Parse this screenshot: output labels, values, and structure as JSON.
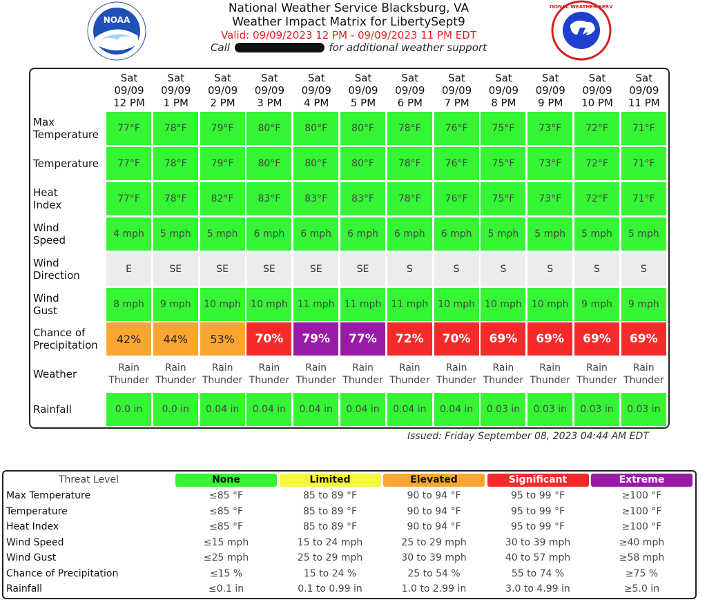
{
  "header": {
    "office": "National Weather Service Blacksburg, VA",
    "matrix_title": "Weather Impact Matrix for LibertySept9",
    "valid": "Valid: 09/09/2023 12 PM - 09/09/2023 11 PM EDT",
    "call_prefix": "Call",
    "call_suffix": "for additional weather support"
  },
  "times": [
    {
      "day": "Sat",
      "date": "09/09",
      "hour": "12 PM"
    },
    {
      "day": "Sat",
      "date": "09/09",
      "hour": "1 PM"
    },
    {
      "day": "Sat",
      "date": "09/09",
      "hour": "2 PM"
    },
    {
      "day": "Sat",
      "date": "09/09",
      "hour": "3 PM"
    },
    {
      "day": "Sat",
      "date": "09/09",
      "hour": "4 PM"
    },
    {
      "day": "Sat",
      "date": "09/09",
      "hour": "5 PM"
    },
    {
      "day": "Sat",
      "date": "09/09",
      "hour": "6 PM"
    },
    {
      "day": "Sat",
      "date": "09/09",
      "hour": "7 PM"
    },
    {
      "day": "Sat",
      "date": "09/09",
      "hour": "8 PM"
    },
    {
      "day": "Sat",
      "date": "09/09",
      "hour": "9 PM"
    },
    {
      "day": "Sat",
      "date": "09/09",
      "hour": "10 PM"
    },
    {
      "day": "Sat",
      "date": "09/09",
      "hour": "11 PM"
    }
  ],
  "rows": [
    {
      "label": [
        "Max",
        "Temperature"
      ],
      "values": [
        "77°F",
        "78°F",
        "79°F",
        "80°F",
        "80°F",
        "80°F",
        "78°F",
        "76°F",
        "75°F",
        "73°F",
        "72°F",
        "71°F"
      ],
      "levels": [
        "none",
        "none",
        "none",
        "none",
        "none",
        "none",
        "none",
        "none",
        "none",
        "none",
        "none",
        "none"
      ]
    },
    {
      "label": [
        "Temperature"
      ],
      "values": [
        "77°F",
        "78°F",
        "79°F",
        "80°F",
        "80°F",
        "80°F",
        "78°F",
        "76°F",
        "75°F",
        "73°F",
        "72°F",
        "71°F"
      ],
      "levels": [
        "none",
        "none",
        "none",
        "none",
        "none",
        "none",
        "none",
        "none",
        "none",
        "none",
        "none",
        "none"
      ]
    },
    {
      "label": [
        "Heat",
        "Index"
      ],
      "values": [
        "77°F",
        "78°F",
        "82°F",
        "83°F",
        "83°F",
        "83°F",
        "78°F",
        "76°F",
        "75°F",
        "73°F",
        "72°F",
        "71°F"
      ],
      "levels": [
        "none",
        "none",
        "none",
        "none",
        "none",
        "none",
        "none",
        "none",
        "none",
        "none",
        "none",
        "none"
      ]
    },
    {
      "label": [
        "Wind",
        "Speed"
      ],
      "values": [
        "4 mph",
        "5 mph",
        "5 mph",
        "6 mph",
        "6 mph",
        "6 mph",
        "6 mph",
        "6 mph",
        "5 mph",
        "5 mph",
        "5 mph",
        "5 mph"
      ],
      "levels": [
        "none",
        "none",
        "none",
        "none",
        "none",
        "none",
        "none",
        "none",
        "none",
        "none",
        "none",
        "none"
      ]
    },
    {
      "label": [
        "Wind",
        "Direction"
      ],
      "values": [
        "E",
        "SE",
        "SE",
        "SE",
        "SE",
        "SE",
        "S",
        "S",
        "S",
        "S",
        "S",
        "S"
      ],
      "levels": [
        "na",
        "na",
        "na",
        "na",
        "na",
        "na",
        "na",
        "na",
        "na",
        "na",
        "na",
        "na"
      ]
    },
    {
      "label": [
        "Wind",
        "Gust"
      ],
      "values": [
        "8 mph",
        "9 mph",
        "10 mph",
        "10 mph",
        "11 mph",
        "11 mph",
        "11 mph",
        "10 mph",
        "10 mph",
        "10 mph",
        "9 mph",
        "9 mph"
      ],
      "levels": [
        "none",
        "none",
        "none",
        "none",
        "none",
        "none",
        "none",
        "none",
        "none",
        "none",
        "none",
        "none"
      ]
    },
    {
      "label": [
        "Chance of",
        "Precipitation"
      ],
      "values": [
        "42%",
        "44%",
        "53%",
        "70%",
        "79%",
        "77%",
        "72%",
        "70%",
        "69%",
        "69%",
        "69%",
        "69%"
      ],
      "levels": [
        "elevated",
        "elevated",
        "elevated",
        "significant",
        "extreme",
        "extreme",
        "significant",
        "significant",
        "significant",
        "significant",
        "significant",
        "significant"
      ]
    },
    {
      "label": [
        "Weather"
      ],
      "values": [
        [
          "Rain",
          "Thunder"
        ],
        [
          "Rain",
          "Thunder"
        ],
        [
          "Rain",
          "Thunder"
        ],
        [
          "Rain",
          "Thunder"
        ],
        [
          "Rain",
          "Thunder"
        ],
        [
          "Rain",
          "Thunder"
        ],
        [
          "Rain",
          "Thunder"
        ],
        [
          "Rain",
          "Thunder"
        ],
        [
          "Rain",
          "Thunder"
        ],
        [
          "Rain",
          "Thunder"
        ],
        [
          "Rain",
          "Thunder"
        ],
        [
          "Rain",
          "Thunder"
        ]
      ],
      "levels": [
        "wx",
        "wx",
        "wx",
        "wx",
        "wx",
        "wx",
        "wx",
        "wx",
        "wx",
        "wx",
        "wx",
        "wx"
      ]
    },
    {
      "label": [
        "Rainfall"
      ],
      "values": [
        "0.0 in",
        "0.0 in",
        "0.04 in",
        "0.04 in",
        "0.04 in",
        "0.04 in",
        "0.04 in",
        "0.04 in",
        "0.03 in",
        "0.03 in",
        "0.03 in",
        "0.03 in"
      ],
      "levels": [
        "none",
        "none",
        "none",
        "none",
        "none",
        "none",
        "none",
        "none",
        "none",
        "none",
        "none",
        "none"
      ]
    }
  ],
  "issued": "Issued: Friday September 08, 2023 04:44 AM EDT",
  "legend": {
    "head_label": "Threat Level",
    "levels": [
      {
        "name": "None",
        "color": "#35f535",
        "text_color": "#111111"
      },
      {
        "name": "Limited",
        "color": "#f6f63a",
        "text_color": "#111111"
      },
      {
        "name": "Elevated",
        "color": "#fba632",
        "text_color": "#111111"
      },
      {
        "name": "Significant",
        "color": "#f52a2a",
        "text_color": "#ffffff"
      },
      {
        "name": "Extreme",
        "color": "#9a1aa8",
        "text_color": "#ffffff"
      }
    ],
    "rows": [
      {
        "label": "Max Temperature",
        "values": [
          "≤85 °F",
          "85 to 89 °F",
          "90 to 94 °F",
          "95 to 99 °F",
          "≥100 °F"
        ]
      },
      {
        "label": "Temperature",
        "values": [
          "≤85 °F",
          "85 to 89 °F",
          "90 to 94 °F",
          "95 to 99 °F",
          "≥100 °F"
        ]
      },
      {
        "label": "Heat Index",
        "values": [
          "≤85 °F",
          "85 to 89 °F",
          "90 to 94 °F",
          "95 to 99 °F",
          "≥100 °F"
        ]
      },
      {
        "label": "Wind Speed",
        "values": [
          "≤15 mph",
          "15 to 24 mph",
          "25 to 29 mph",
          "30 to 39 mph",
          "≥40 mph"
        ]
      },
      {
        "label": "Wind Gust",
        "values": [
          "≤25 mph",
          "25 to 29 mph",
          "30 to 39 mph",
          "40 to 57 mph",
          "≥58 mph"
        ]
      },
      {
        "label": "Chance of Precipitation",
        "values": [
          "≤15 %",
          "15 to 24 %",
          "25 to 54 %",
          "55 to 74 %",
          "≥75 %"
        ]
      },
      {
        "label": "Rainfall",
        "values": [
          "≤0.1 in",
          "0.1 to 0.99 in",
          "1.0 to 2.99 in",
          "3.0 to 4.99 in",
          "≥5.0 in"
        ]
      }
    ]
  },
  "colors": {
    "none": "#35f535",
    "elevated": "#fba632",
    "significant": "#f52a2a",
    "extreme": "#9a1aa8",
    "na": "#ececec"
  },
  "logos": {
    "left": "noaa-logo",
    "right": "nws-logo",
    "left_text": "NOAA",
    "right_text": "NATIONAL WEATHER SERVICE"
  }
}
